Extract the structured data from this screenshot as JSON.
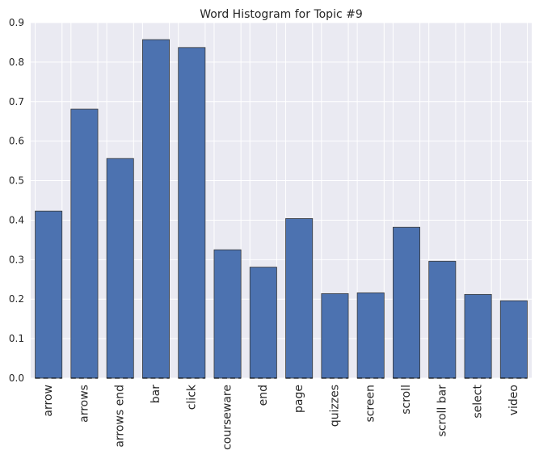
{
  "chart_data": {
    "type": "bar",
    "title": "Word Histogram for Topic #9",
    "xlabel": "",
    "ylabel": "",
    "categories": [
      "arrow",
      "arrows",
      "arrows end",
      "bar",
      "click",
      "courseware",
      "end",
      "page",
      "quizzes",
      "screen",
      "scroll",
      "scroll bar",
      "select",
      "video"
    ],
    "values": [
      0.423,
      0.681,
      0.556,
      0.857,
      0.837,
      0.325,
      0.281,
      0.404,
      0.214,
      0.216,
      0.382,
      0.296,
      0.212,
      0.196
    ],
    "ylim": [
      0,
      0.9
    ],
    "yticks": [
      "0.0",
      "0.1",
      "0.2",
      "0.3",
      "0.4",
      "0.5",
      "0.6",
      "0.7",
      "0.8",
      "0.9"
    ],
    "grid": true,
    "colors": {
      "bar": "#4c72b0",
      "bar_edge": "#3a3a3a",
      "plot_background": "#eaeaf2",
      "grid": "#ffffff"
    }
  }
}
